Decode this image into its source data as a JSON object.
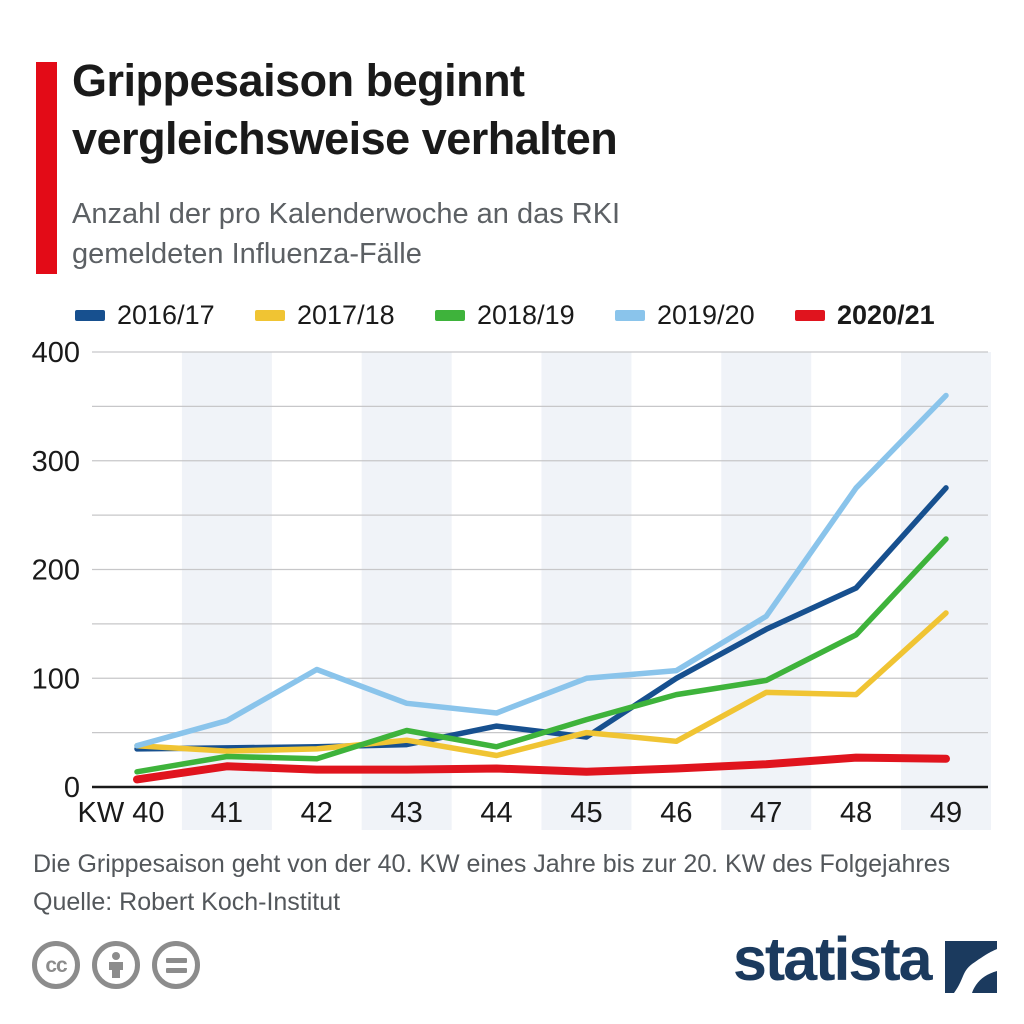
{
  "header": {
    "accent_color": "#e30b17",
    "title_line1": "Grippesaison beginnt",
    "title_line2": "vergleichsweise verhalten",
    "subtitle_line1": "Anzahl der pro Kalenderwoche an das RKI",
    "subtitle_line2": "gemeldeten Influenza-Fälle"
  },
  "chart_data": {
    "type": "line",
    "title": "Anzahl der pro Kalenderwoche an das RKI gemeldeten Influenza-Fälle",
    "categories": [
      40,
      41,
      42,
      43,
      44,
      45,
      46,
      47,
      48,
      49
    ],
    "xticklabels": [
      "KW 40",
      "41",
      "42",
      "43",
      "44",
      "45",
      "46",
      "47",
      "48",
      "49"
    ],
    "yticks": [
      400,
      300,
      200,
      100,
      0
    ],
    "ylim": [
      0,
      400
    ],
    "grid_step": 50,
    "grid_color": "#c7c7c9",
    "axis_color": "#1a1a1a",
    "band_color": "#f0f3f8",
    "banded_categories": [
      41,
      43,
      45,
      47,
      49
    ],
    "legend_position": "top",
    "series": [
      {
        "name": "2016/17",
        "color": "#17508f",
        "stroke_width": 5.5,
        "highlight": false,
        "values": [
          35,
          36,
          37,
          39,
          56,
          46,
          100,
          145,
          183,
          275
        ]
      },
      {
        "name": "2017/18",
        "color": "#f0c433",
        "stroke_width": 5.5,
        "highlight": false,
        "values": [
          38,
          33,
          35,
          43,
          29,
          50,
          42,
          87,
          85,
          160
        ]
      },
      {
        "name": "2018/19",
        "color": "#3eb33b",
        "stroke_width": 5.5,
        "highlight": false,
        "values": [
          14,
          28,
          26,
          52,
          37,
          62,
          85,
          98,
          140,
          228
        ]
      },
      {
        "name": "2019/20",
        "color": "#8ac4eb",
        "stroke_width": 5.5,
        "highlight": false,
        "values": [
          38,
          61,
          108,
          77,
          68,
          100,
          107,
          157,
          275,
          360
        ]
      },
      {
        "name": "2020/21",
        "color": "#e0141e",
        "stroke_width": 8,
        "highlight": true,
        "values": [
          7,
          19,
          16,
          16,
          17,
          14,
          17,
          21,
          27,
          26
        ]
      }
    ]
  },
  "footer": {
    "note": "Die Grippesaison geht von der 40. KW eines Jahre bis zur 20. KW des Folgejahres",
    "source": "Quelle: Robert Koch-Institut"
  },
  "branding": {
    "logo_text": "statista",
    "logo_color": "#1b3a5e",
    "license_cc_label": "cc"
  }
}
